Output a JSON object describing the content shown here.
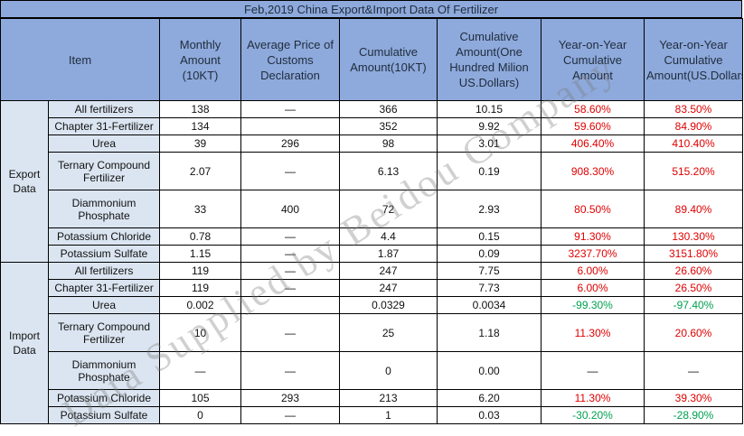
{
  "title": "Feb,2019 China Export&Import Data Of Fertilizer",
  "headers": {
    "item": "Item",
    "monthly": "Monthly Amount (10KT)",
    "avg_price": "Average Price of Customs Declaration",
    "cum_amount": "Cumulative Amount(10KT)",
    "cum_usd": "Cumulative Amount(One Hundred Milion US.Dollars)",
    "yoy_amount": "Year-on-Year Cumulative Amount",
    "yoy_usd": "Year-on-Year Cumulative Amount(US.Dollars)"
  },
  "groups": {
    "export": "Export Data",
    "import": "Import Data"
  },
  "export_rows": [
    {
      "item": "All fertilizers",
      "monthly": "138",
      "price": "—",
      "cum": "366",
      "usd": "10.15",
      "yoy": "58.60%",
      "yoy_usd": "83.50%"
    },
    {
      "item": "Chapter 31-Fertilizer",
      "monthly": "134",
      "price": "",
      "cum": "352",
      "usd": "9.92",
      "yoy": "59.60%",
      "yoy_usd": "84.90%"
    },
    {
      "item": "Urea",
      "monthly": "39",
      "price": "296",
      "cum": "98",
      "usd": "3.01",
      "yoy": "406.40%",
      "yoy_usd": "410.40%"
    },
    {
      "item": "Ternary Compound Fertilizer",
      "monthly": "2.07",
      "price": "—",
      "cum": "6.13",
      "usd": "0.19",
      "yoy": "908.30%",
      "yoy_usd": "515.20%"
    },
    {
      "item": "Diammonium Phosphate",
      "monthly": "33",
      "price": "400",
      "cum": "72",
      "usd": "2.93",
      "yoy": "80.50%",
      "yoy_usd": "89.40%"
    },
    {
      "item": "Potassium Chloride",
      "monthly": "0.78",
      "price": "—",
      "cum": "4.4",
      "usd": "0.15",
      "yoy": "91.30%",
      "yoy_usd": "130.30%"
    },
    {
      "item": "Potassium Sulfate",
      "monthly": "1.15",
      "price": "—",
      "cum": "1.87",
      "usd": "0.09",
      "yoy": "3237.70%",
      "yoy_usd": "3151.80%"
    }
  ],
  "import_rows": [
    {
      "item": "All fertilizers",
      "monthly": "119",
      "price": "—",
      "cum": "247",
      "usd": "7.75",
      "yoy": "6.00%",
      "yoy_usd": "26.60%"
    },
    {
      "item": "Chapter 31-Fertilizer",
      "monthly": "119",
      "price": "—",
      "cum": "247",
      "usd": "7.73",
      "yoy": "6.00%",
      "yoy_usd": "26.50%"
    },
    {
      "item": "Urea",
      "monthly": "0.002",
      "price": "",
      "cum": "0.0329",
      "usd": "0.0034",
      "yoy": "-99.30%",
      "yoy_usd": "-97.40%"
    },
    {
      "item": "Ternary Compound Fertilizer",
      "monthly": "10",
      "price": "—",
      "cum": "25",
      "usd": "1.18",
      "yoy": "11.30%",
      "yoy_usd": "20.60%"
    },
    {
      "item": "Diammonium Phosphate",
      "monthly": "—",
      "price": "—",
      "cum": "0",
      "usd": "0.00",
      "yoy": "—",
      "yoy_usd": "—"
    },
    {
      "item": "Potassium Chloride",
      "monthly": "105",
      "price": "293",
      "cum": "213",
      "usd": "6.20",
      "yoy": "11.30%",
      "yoy_usd": "39.30%"
    },
    {
      "item": "Potassium Sulfate",
      "monthly": "0",
      "price": "—",
      "cum": "1",
      "usd": "0.03",
      "yoy": "-30.20%",
      "yoy_usd": "-28.90%"
    }
  ],
  "watermark": "Data Supplied by Beidou Company",
  "colors": {
    "header_bg": "#8ea9db",
    "item_bg": "#dbe5f1",
    "positive": "#e00000",
    "negative": "#00a050"
  }
}
